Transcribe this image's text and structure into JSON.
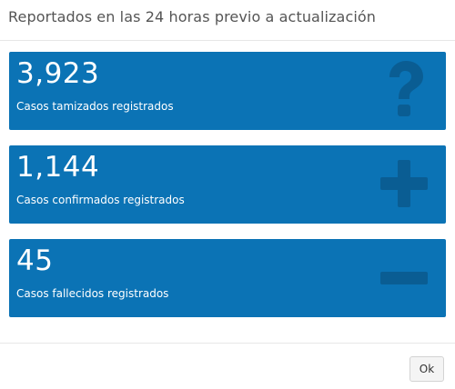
{
  "modal": {
    "title": "Reportados en las 24 horas previo a actualización",
    "ok_label": "Ok"
  },
  "cards": [
    {
      "value": "3,923",
      "label": "Casos tamizados registrados",
      "icon": "question-icon"
    },
    {
      "value": "1,144",
      "label": "Casos confirmados registrados",
      "icon": "plus-icon"
    },
    {
      "value": "45",
      "label": "Casos fallecidos registrados",
      "icon": "minus-icon"
    }
  ],
  "colors": {
    "card_background": "#0b73b5",
    "icon_shade": "#0a5d93",
    "title_text": "#555555"
  }
}
